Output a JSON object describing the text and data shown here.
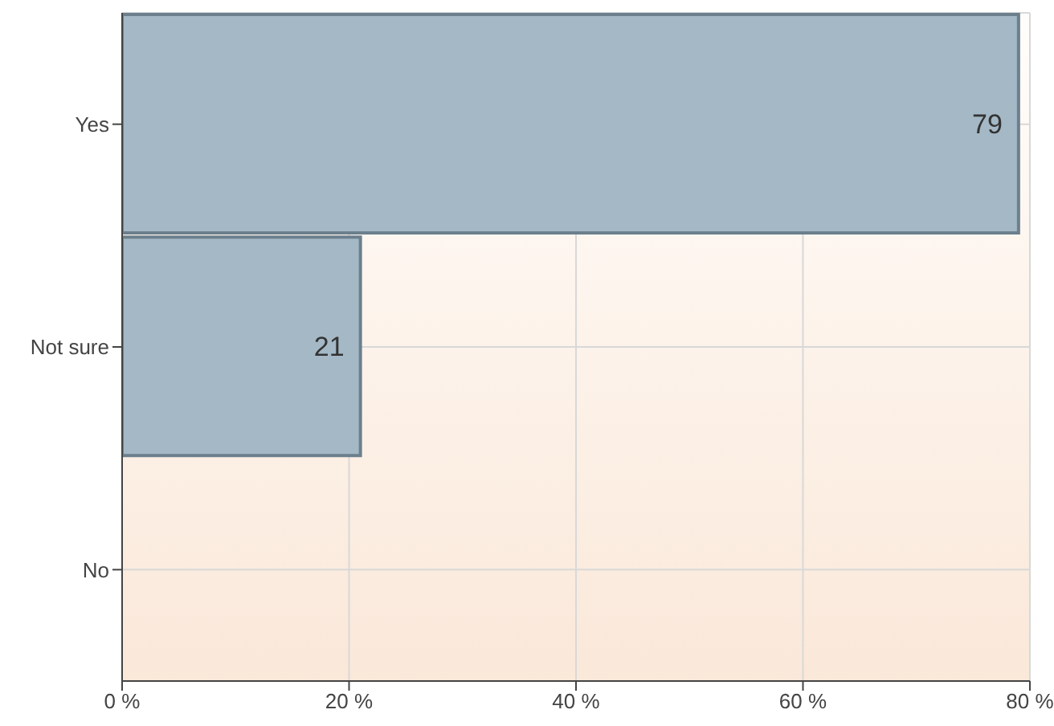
{
  "chart_data": {
    "type": "bar",
    "orientation": "horizontal",
    "categories": [
      "Yes",
      "Not sure",
      "No"
    ],
    "values": [
      79,
      21,
      0
    ],
    "value_labels": [
      "79",
      "21",
      null
    ],
    "color": "#a4b8c6",
    "xlim": [
      0,
      80
    ],
    "xticks": [
      {
        "value": 0,
        "label": "0 %"
      },
      {
        "value": 20,
        "label": "20 %"
      },
      {
        "value": 40,
        "label": "40 %"
      },
      {
        "value": 60,
        "label": "60 %"
      },
      {
        "value": 80,
        "label": "80 %"
      }
    ],
    "grid": true
  }
}
